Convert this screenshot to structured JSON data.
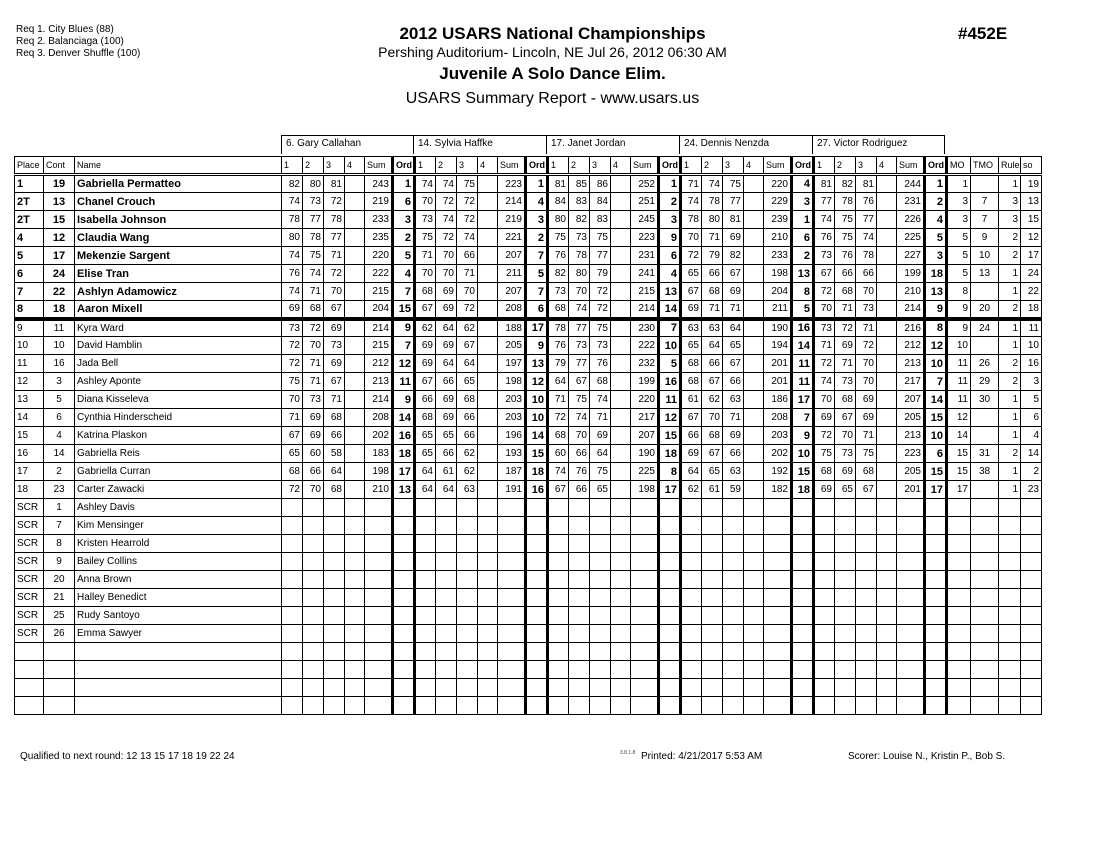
{
  "requirements": [
    "Req  1.  City Blues (88)",
    "Req  2.  Balanciaga (100)",
    "Req  3.  Denver Shuffle (100)"
  ],
  "header": {
    "title": "2012 USARS National Championships",
    "venue": "Pershing Auditorium- Lincoln, NE  Jul 26, 2012  06:30 AM",
    "event": "Juvenile A Solo Dance Elim.",
    "report": "USARS Summary Report - www.usars.us",
    "event_number": "#452E"
  },
  "judges": [
    "6.  Gary Callahan",
    "14.  Sylvia Haffke",
    "17.  Janet Jordan",
    "24.  Dennis Nenzda",
    "27.  Victor Rodriguez"
  ],
  "columns": {
    "place": "Place",
    "cont": "Cont",
    "name": "Name",
    "judge_cols": [
      "1",
      "2",
      "3",
      "4",
      "Sum",
      "Ord"
    ],
    "mo": "MO",
    "tmo": "TMO",
    "rule": "Rule",
    "so": "so"
  },
  "rows": [
    {
      "place": "1",
      "cont": "19",
      "name": "Gabriella Permatteo",
      "j": [
        [
          82,
          80,
          81,
          243,
          1
        ],
        [
          74,
          74,
          75,
          223,
          1
        ],
        [
          81,
          85,
          86,
          252,
          1
        ],
        [
          71,
          74,
          75,
          220,
          4
        ],
        [
          81,
          82,
          81,
          244,
          1
        ]
      ],
      "mo": "1",
      "tmo": "",
      "rule": "1",
      "so": "19"
    },
    {
      "place": "2T",
      "cont": "13",
      "name": "Chanel Crouch",
      "j": [
        [
          74,
          73,
          72,
          219,
          6
        ],
        [
          70,
          72,
          72,
          214,
          4
        ],
        [
          84,
          83,
          84,
          251,
          2
        ],
        [
          74,
          78,
          77,
          229,
          3
        ],
        [
          77,
          78,
          76,
          231,
          2
        ]
      ],
      "mo": "3",
      "tmo": "7",
      "rule": "3",
      "so": "13"
    },
    {
      "place": "2T",
      "cont": "15",
      "name": "Isabella Johnson",
      "j": [
        [
          78,
          77,
          78,
          233,
          3
        ],
        [
          73,
          74,
          72,
          219,
          3
        ],
        [
          80,
          82,
          83,
          245,
          3
        ],
        [
          78,
          80,
          81,
          239,
          1
        ],
        [
          74,
          75,
          77,
          226,
          4
        ]
      ],
      "mo": "3",
      "tmo": "7",
      "rule": "3",
      "so": "15"
    },
    {
      "place": "4",
      "cont": "12",
      "name": "Claudia Wang",
      "j": [
        [
          80,
          78,
          77,
          235,
          2
        ],
        [
          75,
          72,
          74,
          221,
          2
        ],
        [
          75,
          73,
          75,
          223,
          9
        ],
        [
          70,
          71,
          69,
          210,
          6
        ],
        [
          76,
          75,
          74,
          225,
          5
        ]
      ],
      "mo": "5",
      "tmo": "9",
      "rule": "2",
      "so": "12"
    },
    {
      "place": "5",
      "cont": "17",
      "name": "Mekenzie Sargent",
      "j": [
        [
          74,
          75,
          71,
          220,
          5
        ],
        [
          71,
          70,
          66,
          207,
          7
        ],
        [
          76,
          78,
          77,
          231,
          6
        ],
        [
          72,
          79,
          82,
          233,
          2
        ],
        [
          73,
          76,
          78,
          227,
          3
        ]
      ],
      "mo": "5",
      "tmo": "10",
      "rule": "2",
      "so": "17"
    },
    {
      "place": "6",
      "cont": "24",
      "name": "Elise Tran",
      "j": [
        [
          76,
          74,
          72,
          222,
          4
        ],
        [
          70,
          70,
          71,
          211,
          5
        ],
        [
          82,
          80,
          79,
          241,
          4
        ],
        [
          65,
          66,
          67,
          198,
          13
        ],
        [
          67,
          66,
          66,
          199,
          18
        ]
      ],
      "mo": "5",
      "tmo": "13",
      "rule": "1",
      "so": "24"
    },
    {
      "place": "7",
      "cont": "22",
      "name": "Ashlyn Adamowicz",
      "j": [
        [
          74,
          71,
          70,
          215,
          7
        ],
        [
          68,
          69,
          70,
          207,
          7
        ],
        [
          73,
          70,
          72,
          215,
          13
        ],
        [
          67,
          68,
          69,
          204,
          8
        ],
        [
          72,
          68,
          70,
          210,
          13
        ]
      ],
      "mo": "8",
      "tmo": "",
      "rule": "1",
      "so": "22"
    },
    {
      "place": "8",
      "cont": "18",
      "name": "Aaron Mixell",
      "j": [
        [
          69,
          68,
          67,
          204,
          15
        ],
        [
          67,
          69,
          72,
          208,
          6
        ],
        [
          68,
          74,
          72,
          214,
          14
        ],
        [
          69,
          71,
          71,
          211,
          5
        ],
        [
          70,
          71,
          73,
          214,
          9
        ]
      ],
      "mo": "9",
      "tmo": "20",
      "rule": "2",
      "so": "18"
    },
    {
      "place": "9",
      "cont": "11",
      "name": "Kyra Ward",
      "j": [
        [
          73,
          72,
          69,
          214,
          9
        ],
        [
          62,
          64,
          62,
          188,
          17
        ],
        [
          78,
          77,
          75,
          230,
          7
        ],
        [
          63,
          63,
          64,
          190,
          16
        ],
        [
          73,
          72,
          71,
          216,
          8
        ]
      ],
      "mo": "9",
      "tmo": "24",
      "rule": "1",
      "so": "11"
    },
    {
      "place": "10",
      "cont": "10",
      "name": "David Hamblin",
      "j": [
        [
          72,
          70,
          73,
          215,
          7
        ],
        [
          69,
          69,
          67,
          205,
          9
        ],
        [
          76,
          73,
          73,
          222,
          10
        ],
        [
          65,
          64,
          65,
          194,
          14
        ],
        [
          71,
          69,
          72,
          212,
          12
        ]
      ],
      "mo": "10",
      "tmo": "",
      "rule": "1",
      "so": "10"
    },
    {
      "place": "11",
      "cont": "16",
      "name": "Jada Bell",
      "j": [
        [
          72,
          71,
          69,
          212,
          12
        ],
        [
          69,
          64,
          64,
          197,
          13
        ],
        [
          79,
          77,
          76,
          232,
          5
        ],
        [
          68,
          66,
          67,
          201,
          11
        ],
        [
          72,
          71,
          70,
          213,
          10
        ]
      ],
      "mo": "11",
      "tmo": "26",
      "rule": "2",
      "so": "16"
    },
    {
      "place": "12",
      "cont": "3",
      "name": "Ashley Aponte",
      "j": [
        [
          75,
          71,
          67,
          213,
          11
        ],
        [
          67,
          66,
          65,
          198,
          12
        ],
        [
          64,
          67,
          68,
          199,
          16
        ],
        [
          68,
          67,
          66,
          201,
          11
        ],
        [
          74,
          73,
          70,
          217,
          7
        ]
      ],
      "mo": "11",
      "tmo": "29",
      "rule": "2",
      "so": "3"
    },
    {
      "place": "13",
      "cont": "5",
      "name": "Diana Kisseleva",
      "j": [
        [
          70,
          73,
          71,
          214,
          9
        ],
        [
          66,
          69,
          68,
          203,
          10
        ],
        [
          71,
          75,
          74,
          220,
          11
        ],
        [
          61,
          62,
          63,
          186,
          17
        ],
        [
          70,
          68,
          69,
          207,
          14
        ]
      ],
      "mo": "11",
      "tmo": "30",
      "rule": "1",
      "so": "5"
    },
    {
      "place": "14",
      "cont": "6",
      "name": "Cynthia Hinderscheid",
      "j": [
        [
          71,
          69,
          68,
          208,
          14
        ],
        [
          68,
          69,
          66,
          203,
          10
        ],
        [
          72,
          74,
          71,
          217,
          12
        ],
        [
          67,
          70,
          71,
          208,
          7
        ],
        [
          69,
          67,
          69,
          205,
          15
        ]
      ],
      "mo": "12",
      "tmo": "",
      "rule": "1",
      "so": "6"
    },
    {
      "place": "15",
      "cont": "4",
      "name": "Katrina Plaskon",
      "j": [
        [
          67,
          69,
          66,
          202,
          16
        ],
        [
          65,
          65,
          66,
          196,
          14
        ],
        [
          68,
          70,
          69,
          207,
          15
        ],
        [
          66,
          68,
          69,
          203,
          9
        ],
        [
          72,
          70,
          71,
          213,
          10
        ]
      ],
      "mo": "14",
      "tmo": "",
      "rule": "1",
      "so": "4"
    },
    {
      "place": "16",
      "cont": "14",
      "name": "Gabriella Reis",
      "j": [
        [
          65,
          60,
          58,
          183,
          18
        ],
        [
          65,
          66,
          62,
          193,
          15
        ],
        [
          60,
          66,
          64,
          190,
          18
        ],
        [
          69,
          67,
          66,
          202,
          10
        ],
        [
          75,
          73,
          75,
          223,
          6
        ]
      ],
      "mo": "15",
      "tmo": "31",
      "rule": "2",
      "so": "14"
    },
    {
      "place": "17",
      "cont": "2",
      "name": "Gabriella Curran",
      "j": [
        [
          68,
          66,
          64,
          198,
          17
        ],
        [
          64,
          61,
          62,
          187,
          18
        ],
        [
          74,
          76,
          75,
          225,
          8
        ],
        [
          64,
          65,
          63,
          192,
          15
        ],
        [
          68,
          69,
          68,
          205,
          15
        ]
      ],
      "mo": "15",
      "tmo": "38",
      "rule": "1",
      "so": "2"
    },
    {
      "place": "18",
      "cont": "23",
      "name": "Carter Zawacki",
      "j": [
        [
          72,
          70,
          68,
          210,
          13
        ],
        [
          64,
          64,
          63,
          191,
          16
        ],
        [
          67,
          66,
          65,
          198,
          17
        ],
        [
          62,
          61,
          59,
          182,
          18
        ],
        [
          69,
          65,
          67,
          201,
          17
        ]
      ],
      "mo": "17",
      "tmo": "",
      "rule": "1",
      "so": "23"
    },
    {
      "place": "SCR",
      "cont": "1",
      "name": "Ashley Davis"
    },
    {
      "place": "SCR",
      "cont": "7",
      "name": "Kim Mensinger"
    },
    {
      "place": "SCR",
      "cont": "8",
      "name": "Kristen Hearrold"
    },
    {
      "place": "SCR",
      "cont": "9",
      "name": "Bailey Collins"
    },
    {
      "place": "SCR",
      "cont": "20",
      "name": "Anna Brown"
    },
    {
      "place": "SCR",
      "cont": "21",
      "name": "Halley Benedict"
    },
    {
      "place": "SCR",
      "cont": "25",
      "name": "Rudy Santoyo"
    },
    {
      "place": "SCR",
      "cont": "26",
      "name": "Emma Sawyer"
    },
    {
      "place": "",
      "cont": "",
      "name": ""
    },
    {
      "place": "",
      "cont": "",
      "name": ""
    },
    {
      "place": "",
      "cont": "",
      "name": ""
    },
    {
      "place": "",
      "cont": "",
      "name": ""
    }
  ],
  "footer": {
    "qualified": "Qualified to next round:   12 13 15 17 18 19 22 24",
    "version": "3.8.1.8",
    "printed": "Printed:  4/21/2017  5:53 AM",
    "scorer": "Scorer:   Louise N., Kristin P., Bob S."
  }
}
